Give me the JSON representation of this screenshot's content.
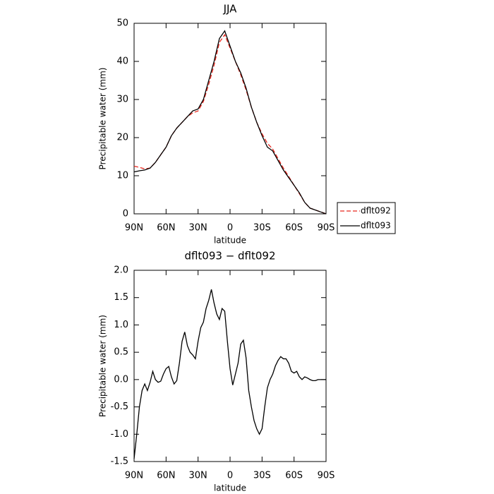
{
  "chart_data": [
    {
      "type": "line",
      "title": "JJA",
      "xlabel": "latitude",
      "ylabel": "Precipitable water  (mm)",
      "x": [
        90,
        85,
        80,
        75,
        70,
        65,
        60,
        55,
        50,
        45,
        40,
        35,
        30,
        25,
        20,
        15,
        10,
        5,
        0,
        -5,
        -10,
        -15,
        -20,
        -25,
        -30,
        -35,
        -40,
        -45,
        -50,
        -55,
        -60,
        -65,
        -70,
        -75,
        -80,
        -85,
        -90
      ],
      "xlim": [
        90,
        -90
      ],
      "xticks": [
        {
          "value": 90,
          "label": "90N"
        },
        {
          "value": 60,
          "label": "60N"
        },
        {
          "value": 30,
          "label": "30N"
        },
        0,
        {
          "value": -30,
          "label": "30S"
        },
        {
          "value": -60,
          "label": "60S"
        },
        {
          "value": -90,
          "label": "90S"
        }
      ],
      "ylim": [
        0,
        50
      ],
      "yticks": [
        0,
        10,
        20,
        30,
        40,
        50
      ],
      "legend": "right",
      "series": [
        {
          "name": "dflt092",
          "color": "#e8281e",
          "dashed": true,
          "values": [
            12.5,
            12.2,
            11.8,
            12,
            13.5,
            15.5,
            17.5,
            20.5,
            22.5,
            24,
            25.5,
            26.5,
            27,
            29.5,
            34,
            39,
            45,
            47,
            43.5,
            40,
            36.5,
            32.5,
            28,
            24,
            21,
            18.5,
            17,
            14.5,
            12,
            9.8,
            7.5,
            5.3,
            3,
            1.5,
            1,
            0.5,
            0
          ]
        },
        {
          "name": "dflt093",
          "color": "#000000",
          "dashed": false,
          "values": [
            11,
            11.3,
            11.5,
            12,
            13.5,
            15.5,
            17.5,
            20.5,
            22.5,
            24,
            25.5,
            27,
            27.5,
            30,
            35,
            40,
            46,
            48,
            44,
            40,
            37,
            33,
            28,
            24,
            20.5,
            17.5,
            16.5,
            14,
            11.5,
            9.5,
            7.5,
            5.5,
            3,
            1.5,
            1,
            0.5,
            0
          ]
        }
      ]
    },
    {
      "type": "line",
      "title": "dflt093 − dflt092",
      "xlabel": "latitude",
      "ylabel": "Precipitable water  (mm)",
      "x": [
        90,
        87.5,
        85,
        82.5,
        80,
        77.5,
        75,
        72.5,
        70,
        67.5,
        65,
        62.5,
        60,
        57.5,
        55,
        52.5,
        50,
        47.5,
        45,
        42.5,
        40,
        37.5,
        35,
        32.5,
        30,
        27.5,
        25,
        22.5,
        20,
        17.5,
        15,
        12.5,
        10,
        7.5,
        5,
        2.5,
        0,
        -2.5,
        -5,
        -7.5,
        -10,
        -12.5,
        -15,
        -17.5,
        -20,
        -22.5,
        -25,
        -27.5,
        -30,
        -32.5,
        -35,
        -37.5,
        -40,
        -42.5,
        -45,
        -47.5,
        -50,
        -52.5,
        -55,
        -57.5,
        -60,
        -62.5,
        -65,
        -67.5,
        -70,
        -72.5,
        -75,
        -77.5,
        -80,
        -82.5,
        -85,
        -87.5,
        -90
      ],
      "xlim": [
        90,
        -90
      ],
      "xticks": [
        {
          "value": 90,
          "label": "90N"
        },
        {
          "value": 60,
          "label": "60N"
        },
        {
          "value": 30,
          "label": "30N"
        },
        0,
        {
          "value": -30,
          "label": "30S"
        },
        {
          "value": -60,
          "label": "60S"
        },
        {
          "value": -90,
          "label": "90S"
        }
      ],
      "ylim": [
        -1.5,
        2.0
      ],
      "yticks": [
        -1.5,
        {
          "value": -1.0,
          "label": "-1.0"
        },
        -0.5,
        {
          "value": 0,
          "label": "0.0"
        },
        0.5,
        {
          "value": 1.0,
          "label": "1.0"
        },
        1.5,
        {
          "value": 2.0,
          "label": "2.0"
        }
      ],
      "color": "#000000",
      "values": [
        -1.45,
        -1.0,
        -0.5,
        -0.2,
        -0.08,
        -0.2,
        -0.05,
        0.15,
        0.0,
        -0.05,
        -0.03,
        0.1,
        0.2,
        0.24,
        0.05,
        -0.08,
        -0.02,
        0.3,
        0.7,
        0.87,
        0.62,
        0.5,
        0.45,
        0.38,
        0.7,
        0.95,
        1.05,
        1.3,
        1.45,
        1.65,
        1.4,
        1.2,
        1.1,
        1.3,
        1.25,
        0.7,
        0.2,
        -0.1,
        0.1,
        0.3,
        0.65,
        0.72,
        0.4,
        -0.2,
        -0.5,
        -0.75,
        -0.9,
        -1.0,
        -0.9,
        -0.5,
        -0.15,
        0.0,
        0.1,
        0.25,
        0.35,
        0.42,
        0.38,
        0.38,
        0.3,
        0.15,
        0.12,
        0.15,
        0.05,
        0.0,
        0.05,
        0.03,
        0.0,
        -0.02,
        -0.02,
        0.0,
        0.0,
        0.0,
        0.0
      ]
    }
  ]
}
